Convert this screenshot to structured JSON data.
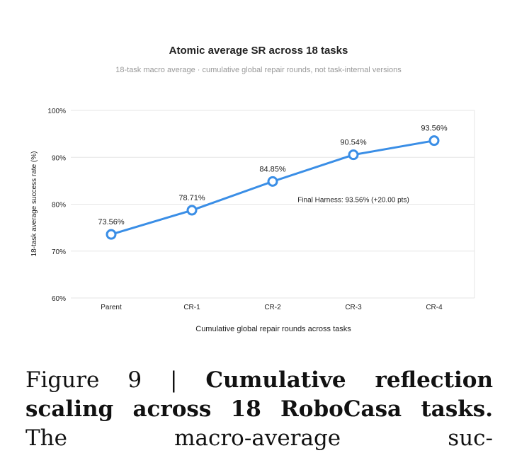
{
  "chart_data": {
    "type": "line",
    "title": "Atomic average SR across 18 tasks",
    "subtitle": "18-task macro average · cumulative global repair rounds, not task-internal versions",
    "xlabel": "Cumulative global repair rounds across tasks",
    "ylabel": "18-task average success rate (%)",
    "categories": [
      "Parent",
      "CR-1",
      "CR-2",
      "CR-3",
      "CR-4"
    ],
    "values": [
      73.56,
      78.71,
      84.85,
      90.54,
      93.56
    ],
    "data_labels": [
      "73.56%",
      "78.71%",
      "84.85%",
      "90.54%",
      "93.56%"
    ],
    "ylim": [
      60,
      100
    ],
    "yticks": [
      60,
      70,
      80,
      90,
      100
    ],
    "ytick_labels": [
      "60%",
      "70%",
      "80%",
      "90%",
      "100%"
    ],
    "grid": true,
    "annotation": "Final Harness: 93.56% (+20.00 pts)",
    "line_color": "#3a8ee6"
  },
  "caption": {
    "figure_label": "Figure 9 |",
    "bold_title": "Cumulative reflection scaling across 18 RoboCasa tasks.",
    "text": "The macro-average suc-"
  }
}
